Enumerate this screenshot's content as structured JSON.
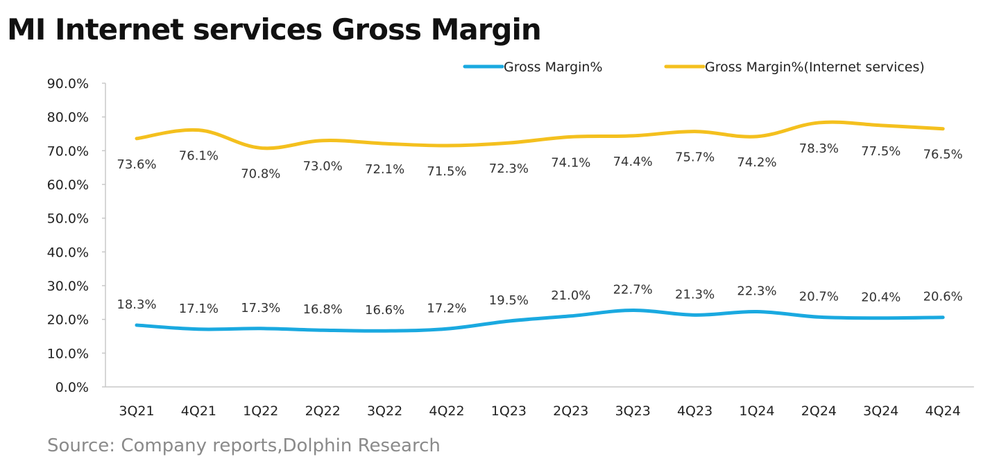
{
  "chart_data": {
    "type": "line",
    "title": "MI Internet services Gross Margin",
    "source": "Source: Company reports,Dolphin Research",
    "categories": [
      "3Q21",
      "4Q21",
      "1Q22",
      "2Q22",
      "3Q22",
      "4Q22",
      "1Q23",
      "2Q23",
      "3Q23",
      "4Q23",
      "1Q24",
      "2Q24",
      "3Q24",
      "4Q24"
    ],
    "series": [
      {
        "name": "Gross Margin%",
        "color": "#1AA9E0",
        "values": [
          18.3,
          17.1,
          17.3,
          16.8,
          16.6,
          17.2,
          19.5,
          21.0,
          22.7,
          21.3,
          22.3,
          20.7,
          20.4,
          20.6
        ],
        "labels": [
          "18.3%",
          "17.1%",
          "17.3%",
          "16.8%",
          "16.6%",
          "17.2%",
          "19.5%",
          "21.0%",
          "22.7%",
          "21.3%",
          "22.3%",
          "20.7%",
          "20.4%",
          "20.6%"
        ]
      },
      {
        "name": "Gross Margin%(Internet services)",
        "color": "#F4C01E",
        "values": [
          73.6,
          76.1,
          70.8,
          73.0,
          72.1,
          71.5,
          72.3,
          74.1,
          74.4,
          75.7,
          74.2,
          78.3,
          77.5,
          76.5
        ],
        "labels": [
          "73.6%",
          "76.1%",
          "70.8%",
          "73.0%",
          "72.1%",
          "71.5%",
          "72.3%",
          "74.1%",
          "74.4%",
          "75.7%",
          "74.2%",
          "78.3%",
          "77.5%",
          "76.5%"
        ]
      }
    ],
    "y_ticks": [
      "0.0%",
      "10.0%",
      "20.0%",
      "30.0%",
      "40.0%",
      "50.0%",
      "60.0%",
      "70.0%",
      "80.0%",
      "90.0%"
    ],
    "ylim": [
      0,
      90
    ],
    "grid": false,
    "legend_position": "top-right",
    "data_label_position": "above-line"
  }
}
